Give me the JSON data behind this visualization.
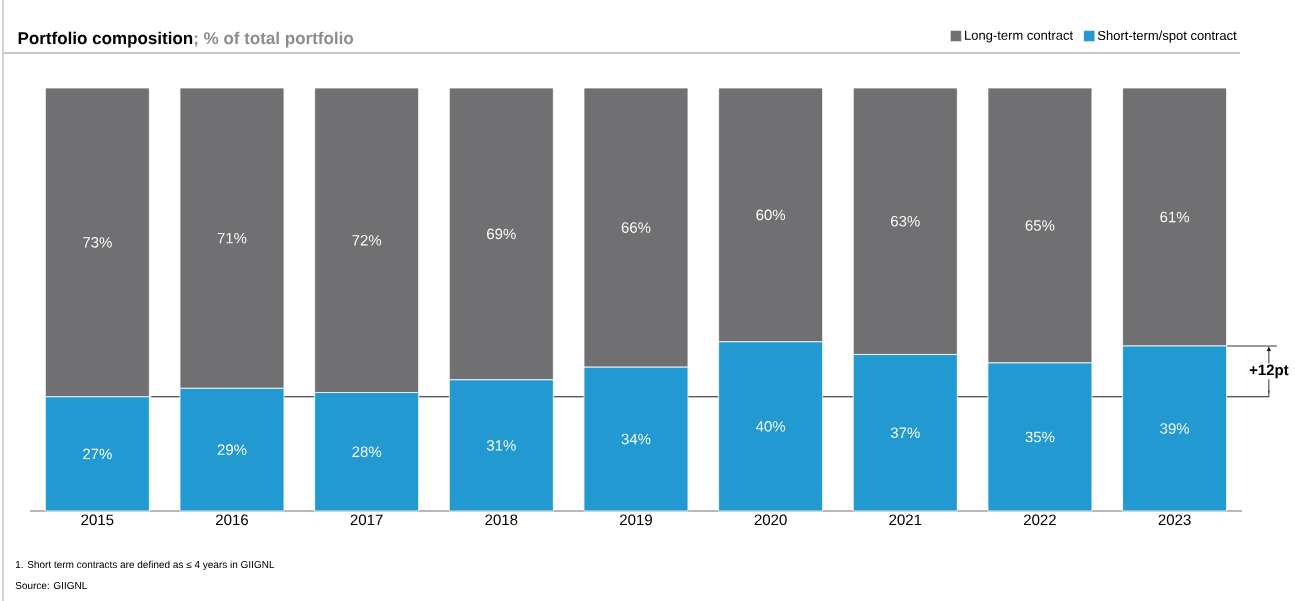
{
  "chart_data": {
    "type": "bar",
    "stacked": true,
    "title": "Portfolio composition",
    "subtitle": "; % of total portfolio",
    "categories": [
      "2015",
      "2016",
      "2017",
      "2018",
      "2019",
      "2020",
      "2021",
      "2022",
      "2023"
    ],
    "series": [
      {
        "name": "Short-term/spot contract",
        "color": "#2399d2",
        "values": [
          27,
          29,
          28,
          31,
          34,
          40,
          37,
          35,
          39
        ],
        "value_labels": [
          "27%",
          "29%",
          "28%",
          "31%",
          "34%",
          "40%",
          "37%",
          "35%",
          "39%"
        ]
      },
      {
        "name": "Long-term contract",
        "color": "#707073",
        "values": [
          73,
          71,
          72,
          69,
          66,
          60,
          63,
          65,
          61
        ],
        "value_labels": [
          "73%",
          "71%",
          "72%",
          "69%",
          "66%",
          "60%",
          "63%",
          "65%",
          "61%"
        ]
      }
    ],
    "legend": "top right",
    "ref_lines": [
      {
        "axis": "y",
        "value": 27,
        "color": "#000000"
      }
    ],
    "annotations": [
      "+12pt",
      "1.     Short term contracts are defined as ≤ 4 years in GIIGNL",
      "Source: GIIGNL"
    ]
  }
}
